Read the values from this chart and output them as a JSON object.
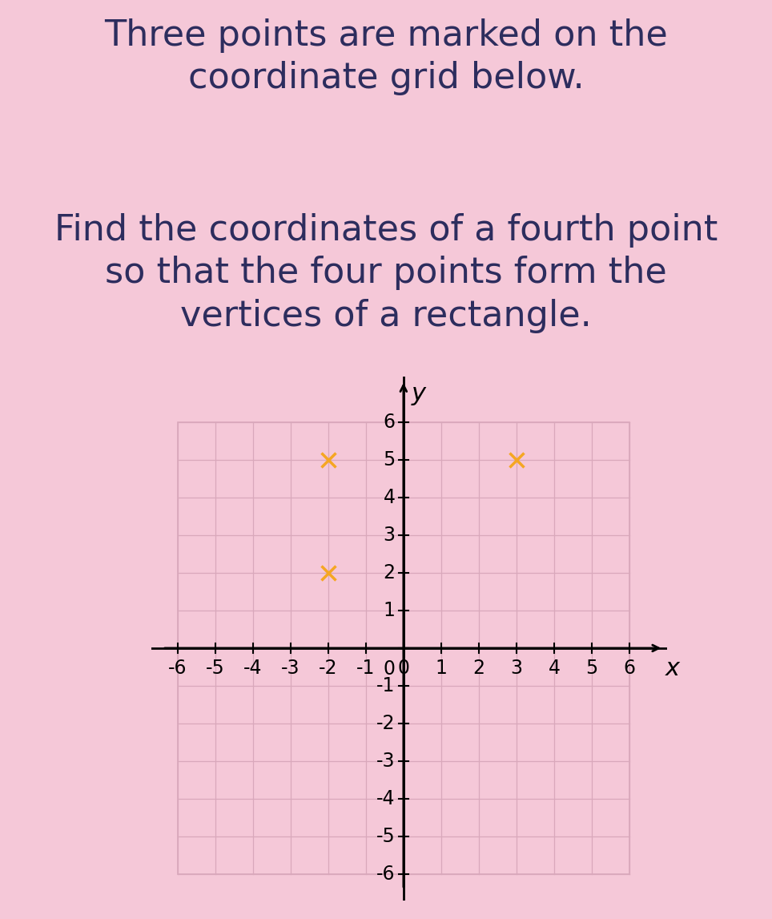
{
  "background_color": "#f5c8d8",
  "grid_color": "#d9a8bb",
  "title_line1": "Three points are marked on the",
  "title_line2": "coordinate grid below.",
  "subtitle_line1": "Find the coordinates of a fourth point",
  "subtitle_line2": "so that the four points form the",
  "subtitle_line3": "vertices of a rectangle.",
  "title_fontsize": 32,
  "subtitle_fontsize": 32,
  "text_color": "#2d2d5e",
  "points": [
    [
      -2,
      5
    ],
    [
      -2,
      2
    ],
    [
      3,
      5
    ]
  ],
  "point_color": "#f5a623",
  "point_markersize": 13,
  "point_markeredgewidth": 2.5,
  "xlim": [
    -6.7,
    7.0
  ],
  "ylim": [
    -6.7,
    7.2
  ],
  "xticks": [
    -6,
    -5,
    -4,
    -3,
    -2,
    -1,
    0,
    1,
    2,
    3,
    4,
    5,
    6
  ],
  "yticks": [
    -6,
    -5,
    -4,
    -3,
    -2,
    -1,
    1,
    2,
    3,
    4,
    5,
    6
  ],
  "xlabel": "x",
  "ylabel": "y",
  "axis_label_fontsize": 22,
  "tick_fontsize": 17,
  "grid_xmin": -6,
  "grid_xmax": 6,
  "grid_ymin": -6,
  "grid_ymax": 6
}
